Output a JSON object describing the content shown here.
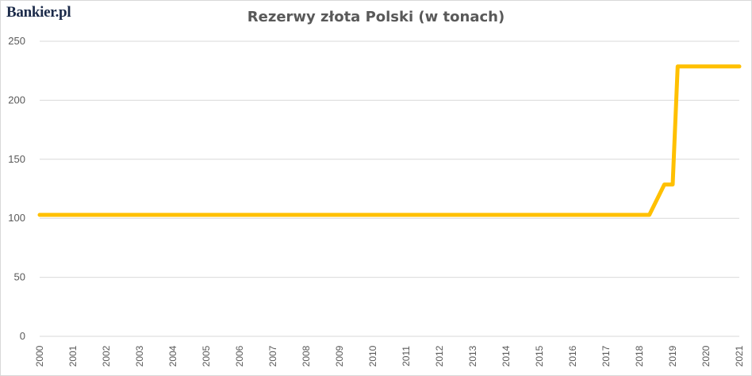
{
  "brand": "Bankier.pl",
  "colors": {
    "line": "#FFC000",
    "grid": "#D9D9D9",
    "text": "#595959",
    "brand": "#1C2B4A"
  },
  "chart_data": {
    "type": "line",
    "title": "Rezerwy złota Polski (w tonach)",
    "xlabel": "",
    "ylabel": "",
    "ylim": [
      0,
      250
    ],
    "yticks": [
      "0",
      "50",
      "100",
      "150",
      "200",
      "250"
    ],
    "xticks": [
      "2000",
      "2001",
      "2002",
      "2003",
      "2004",
      "2005",
      "2006",
      "2007",
      "2008",
      "2009",
      "2010",
      "2011",
      "2012",
      "2013",
      "2014",
      "2015",
      "2016",
      "2017",
      "2018",
      "2019",
      "2020",
      "2021"
    ],
    "grid": true,
    "legend": "none",
    "series": [
      {
        "x": [
          2000.0,
          2018.3,
          2018.75,
          2019.0,
          2019.15,
          2019.55,
          2021.0
        ],
        "values": [
          102.9,
          102.9,
          128.6,
          128.6,
          228.6,
          228.6,
          228.6
        ]
      }
    ]
  }
}
